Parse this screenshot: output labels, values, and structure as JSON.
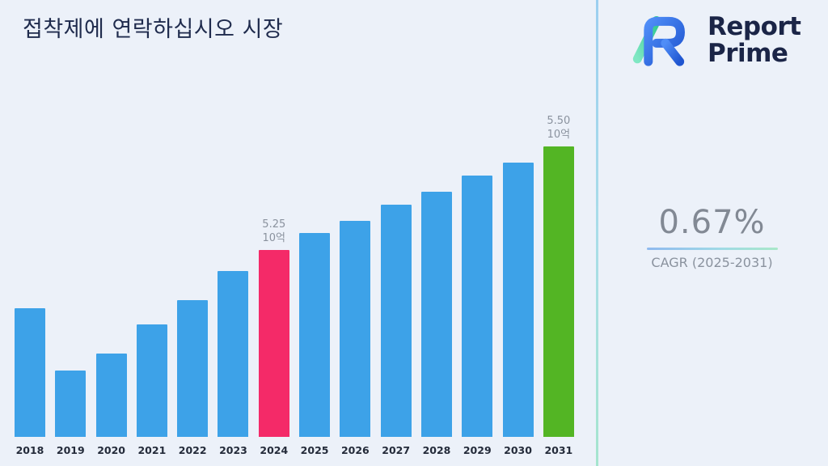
{
  "title": "접착제에 연락하십시오 시장",
  "logo": {
    "line1": "Report",
    "line2": "Prime"
  },
  "stats": {
    "cagr_value": "0.67%",
    "cagr_label": "CAGR (2025-2031)"
  },
  "colors": {
    "background": "#ECF1F9",
    "bar_default": "#3DA2E8",
    "bar_highlight_2024": "#F42A68",
    "bar_highlight_2031": "#53B524",
    "title_text": "#1F2B4D",
    "muted_text": "#8A929E",
    "logo_text": "#1B2547",
    "logo_blue": "#2D6BDF",
    "logo_green": "#3FD69E"
  },
  "chart_data": {
    "type": "bar",
    "title": "접착제에 연락하십시오 시장",
    "xlabel": "",
    "ylabel": "",
    "unit": "10억",
    "categories": [
      "2018",
      "2019",
      "2020",
      "2021",
      "2022",
      "2023",
      "2024",
      "2025",
      "2026",
      "2027",
      "2028",
      "2029",
      "2030",
      "2031"
    ],
    "values": [
      5.11,
      4.96,
      5.0,
      5.07,
      5.13,
      5.2,
      5.25,
      5.29,
      5.32,
      5.36,
      5.39,
      5.43,
      5.46,
      5.5
    ],
    "ylim": [
      4.8,
      5.55
    ],
    "grid": false,
    "legend": false,
    "bar_labels": {
      "2024": {
        "value": "5.25",
        "unit": "10억"
      },
      "2031": {
        "value": "5.50",
        "unit": "10억"
      }
    },
    "highlight_colors": {
      "2024": "#F42A68",
      "2031": "#53B524"
    }
  }
}
